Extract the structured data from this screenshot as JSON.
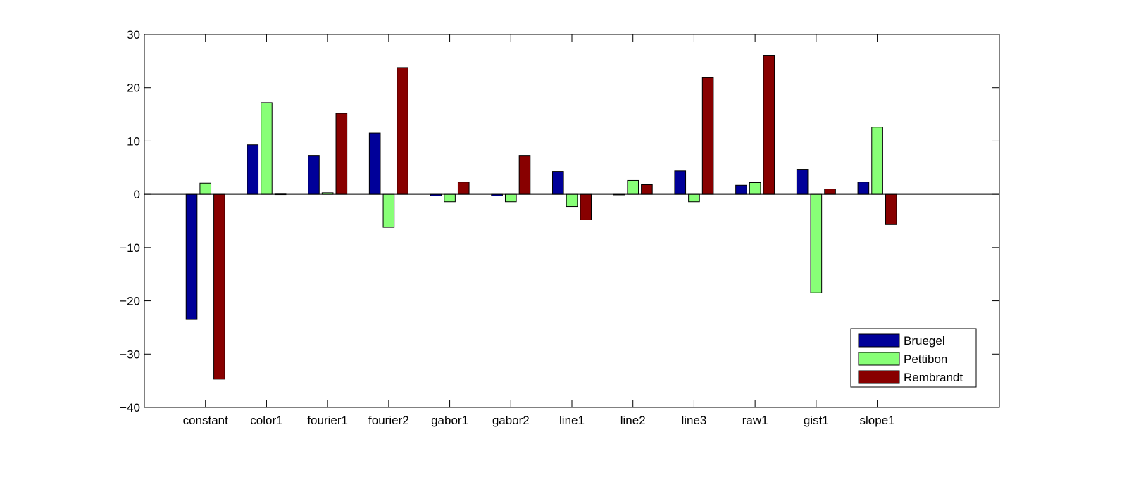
{
  "chart_data": {
    "type": "bar",
    "categories": [
      "constant",
      "color1",
      "fourier1",
      "fourier2",
      "gabor1",
      "gabor2",
      "line1",
      "line2",
      "line3",
      "raw1",
      "gist1",
      "slope1"
    ],
    "series": [
      {
        "name": "Bruegel",
        "color": "#000099",
        "values": [
          -23.5,
          9.3,
          7.2,
          11.5,
          -0.3,
          -0.3,
          4.3,
          0.0,
          4.4,
          1.7,
          4.7,
          2.3
        ]
      },
      {
        "name": "Pettibon",
        "color": "#88ff77",
        "values": [
          2.1,
          17.2,
          0.3,
          -6.2,
          -1.4,
          -1.4,
          -2.3,
          2.6,
          -1.4,
          2.2,
          -18.5,
          12.6
        ]
      },
      {
        "name": "Rembrandt",
        "color": "#880000",
        "values": [
          -34.7,
          0.05,
          15.2,
          23.8,
          2.3,
          7.2,
          -4.8,
          1.8,
          21.9,
          26.1,
          1.0,
          -5.7
        ]
      }
    ],
    "ylim": [
      -40,
      30
    ],
    "yticks": [
      -40,
      -30,
      -20,
      -10,
      0,
      10,
      20,
      30
    ],
    "ytick_labels": [
      "−40",
      "−30",
      "−20",
      "−10",
      "0",
      "10",
      "20",
      "30"
    ],
    "xlim": [
      0,
      14
    ],
    "title": "",
    "xlabel": "",
    "ylabel": "",
    "legend_position": "bottom-right",
    "grid": false
  }
}
